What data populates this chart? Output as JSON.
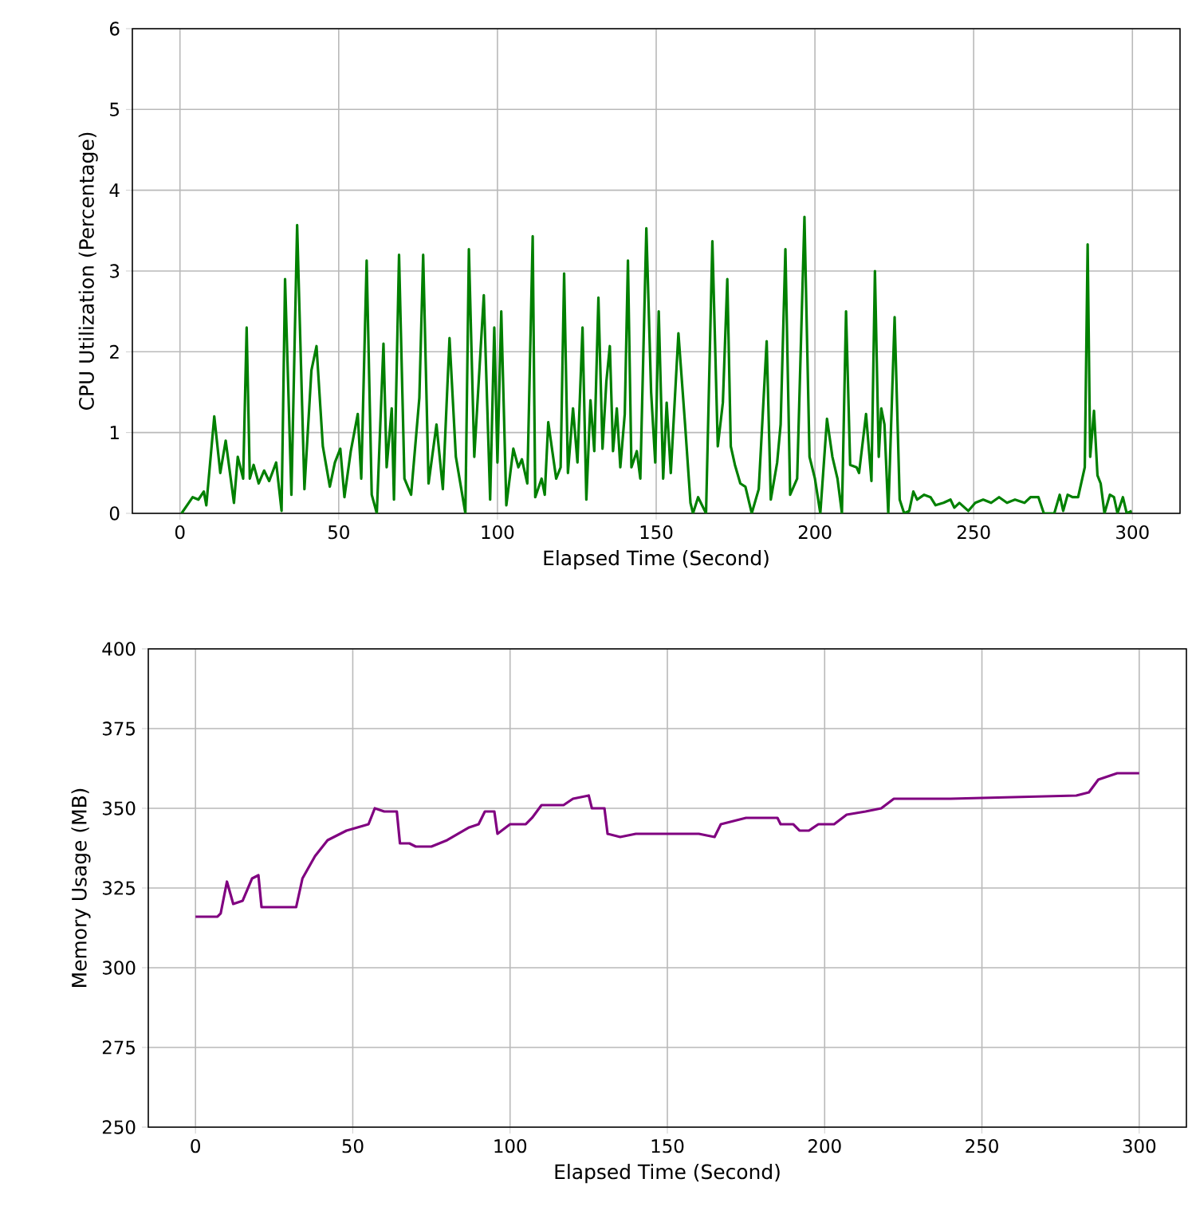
{
  "chart_data": [
    {
      "type": "line",
      "xlabel": "Elapsed Time (Second)",
      "ylabel": "CPU Utilization (Percentage)",
      "xlim": [
        -15,
        315
      ],
      "ylim": [
        0,
        6
      ],
      "xticks": [
        0,
        50,
        100,
        150,
        200,
        250,
        300
      ],
      "yticks": [
        0,
        1,
        2,
        3,
        4,
        5,
        6
      ],
      "grid": true,
      "series": [
        {
          "color": "#008000",
          "x": [
            0.5,
            4,
            5.8,
            7.5,
            8.3,
            10.8,
            12.7,
            14.4,
            17,
            18.2,
            19.9,
            21,
            22,
            23.2,
            24.8,
            26.5,
            28.1,
            30.3,
            32,
            33.1,
            35.1,
            36.9,
            39.2,
            41.4,
            43,
            45,
            47.2,
            48.8,
            50.5,
            51.8,
            53.8,
            56,
            57.1,
            58.8,
            60.4,
            62,
            64.1,
            65.1,
            66.7,
            67.4,
            69,
            70.7,
            72.8,
            75.4,
            76.6,
            78.3,
            80.8,
            82.8,
            84.9,
            86.9,
            89.9,
            91,
            92.7,
            95.7,
            97.7,
            99,
            100,
            101.2,
            102.8,
            105,
            106.6,
            107.7,
            109.4,
            111.1,
            111.9,
            113.9,
            114.9,
            116,
            118.5,
            119.9,
            121,
            122.2,
            123.8,
            125.2,
            126.8,
            128,
            129.3,
            130.5,
            131.8,
            133.1,
            134.3,
            135.4,
            136.4,
            137.6,
            138.7,
            140.1,
            141.1,
            142.2,
            143.9,
            145,
            146.9,
            148.4,
            149.7,
            150.8,
            152.2,
            153.3,
            154.6,
            157,
            159.1,
            160.8,
            161.6,
            163.2,
            165.7,
            167.7,
            169.4,
            171,
            172.4,
            173.5,
            174.8,
            176.5,
            178.1,
            180.1,
            182.3,
            184.8,
            186.1,
            188.1,
            189.2,
            190.7,
            192.2,
            194.4,
            196.7,
            198.3,
            200,
            201.7,
            203.8,
            205.5,
            207.1,
            208.5,
            209.8,
            211.1,
            213.1,
            213.9,
            216.1,
            217.8,
            218.9,
            220.1,
            220.9,
            221.9,
            223.1,
            225.1,
            226.7,
            228.1,
            229.7,
            231,
            232.2,
            234.4,
            236.4,
            238,
            240.5,
            242.7,
            243.9,
            245.5,
            248.3,
            250.5,
            253,
            255.5,
            258,
            260.5,
            263,
            266,
            267.9,
            270.4,
            272.1,
            275.4,
            277.1,
            278.2,
            279.6,
            281.2,
            282.9,
            284.2,
            285,
            285.9,
            286.7,
            287.9,
            289,
            290,
            291.2,
            292.9,
            294.2,
            295.3,
            297,
            298.2,
            299.8
          ],
          "values": [
            0,
            0.2,
            0.17,
            0.27,
            0.1,
            1.2,
            0.5,
            0.9,
            0.13,
            0.7,
            0.43,
            2.3,
            0.43,
            0.6,
            0.37,
            0.53,
            0.4,
            0.63,
            0.03,
            2.9,
            0.23,
            3.57,
            0.3,
            1.77,
            2.07,
            0.83,
            0.33,
            0.63,
            0.8,
            0.2,
            0.77,
            1.23,
            0.43,
            3.13,
            0.23,
            0,
            2.1,
            0.57,
            1.3,
            0.17,
            3.2,
            0.43,
            0.23,
            1.43,
            3.2,
            0.37,
            1.1,
            0.3,
            2.17,
            0.7,
            0,
            3.27,
            0.7,
            2.7,
            0.17,
            2.3,
            0.63,
            2.5,
            0.1,
            0.8,
            0.57,
            0.67,
            0.37,
            3.43,
            0.2,
            0.43,
            0.23,
            1.13,
            0.43,
            0.57,
            2.97,
            0.5,
            1.3,
            0.63,
            2.3,
            0.17,
            1.4,
            0.77,
            2.67,
            0.8,
            1.63,
            2.07,
            0.77,
            1.3,
            0.57,
            1.23,
            3.13,
            0.57,
            0.77,
            0.43,
            3.53,
            1.5,
            0.63,
            2.5,
            0.43,
            1.37,
            0.5,
            2.23,
            1.1,
            0.13,
            0,
            0.2,
            0,
            3.37,
            0.83,
            1.37,
            2.9,
            0.83,
            0.6,
            0.37,
            0.33,
            0,
            0.3,
            2.13,
            0.17,
            0.63,
            1.1,
            3.27,
            0.23,
            0.43,
            3.67,
            0.7,
            0.43,
            0,
            1.17,
            0.7,
            0.43,
            0,
            2.5,
            0.6,
            0.57,
            0.5,
            1.23,
            0.4,
            3.0,
            0.7,
            1.3,
            1.1,
            0,
            2.43,
            0.17,
            0,
            0.03,
            0.27,
            0.17,
            0.23,
            0.2,
            0.1,
            0.13,
            0.17,
            0.07,
            0.13,
            0.03,
            0.13,
            0.17,
            0.13,
            0.2,
            0.13,
            0.17,
            0.13,
            0.2,
            0.2,
            0,
            0,
            0.23,
            0.03,
            0.23,
            0.2,
            0.2,
            0.43,
            0.57,
            3.33,
            0.7,
            1.27,
            0.47,
            0.37,
            0,
            0.23,
            0.2,
            0,
            0.2,
            0,
            0.03
          ]
        }
      ]
    },
    {
      "type": "line",
      "xlabel": "Elapsed Time (Second)",
      "ylabel": "Memory Usage (MB)",
      "xlim": [
        -15,
        315
      ],
      "ylim": [
        250,
        400
      ],
      "xticks": [
        0,
        50,
        100,
        150,
        200,
        250,
        300
      ],
      "yticks": [
        250,
        275,
        300,
        325,
        350,
        375,
        400
      ],
      "grid": true,
      "series": [
        {
          "color": "#800080",
          "x": [
            0,
            7,
            8,
            10,
            12,
            15,
            18,
            20,
            21,
            32,
            34,
            38,
            42,
            48,
            55,
            57,
            60,
            64,
            65,
            68,
            70,
            75,
            80,
            87,
            90,
            92,
            95,
            96,
            100,
            105,
            107,
            110,
            117,
            120,
            125,
            126,
            130,
            131,
            135,
            140,
            160,
            165,
            167,
            175,
            185,
            186,
            190,
            192,
            195,
            198,
            203,
            207,
            213,
            218,
            222,
            240,
            260,
            280,
            284,
            287,
            290,
            293,
            300
          ],
          "values": [
            316,
            316,
            317,
            327,
            320,
            321,
            328,
            329,
            319,
            319,
            328,
            335,
            340,
            343,
            345,
            350,
            349,
            349,
            339,
            339,
            338,
            338,
            340,
            344,
            345,
            349,
            349,
            342,
            345,
            345,
            347,
            351,
            351,
            353,
            354,
            350,
            350,
            342,
            341,
            342,
            342,
            341,
            345,
            347,
            347,
            345,
            345,
            343,
            343,
            345,
            345,
            348,
            349,
            350,
            353,
            353,
            353.5,
            354,
            355,
            359,
            360,
            361,
            361
          ]
        }
      ]
    }
  ]
}
